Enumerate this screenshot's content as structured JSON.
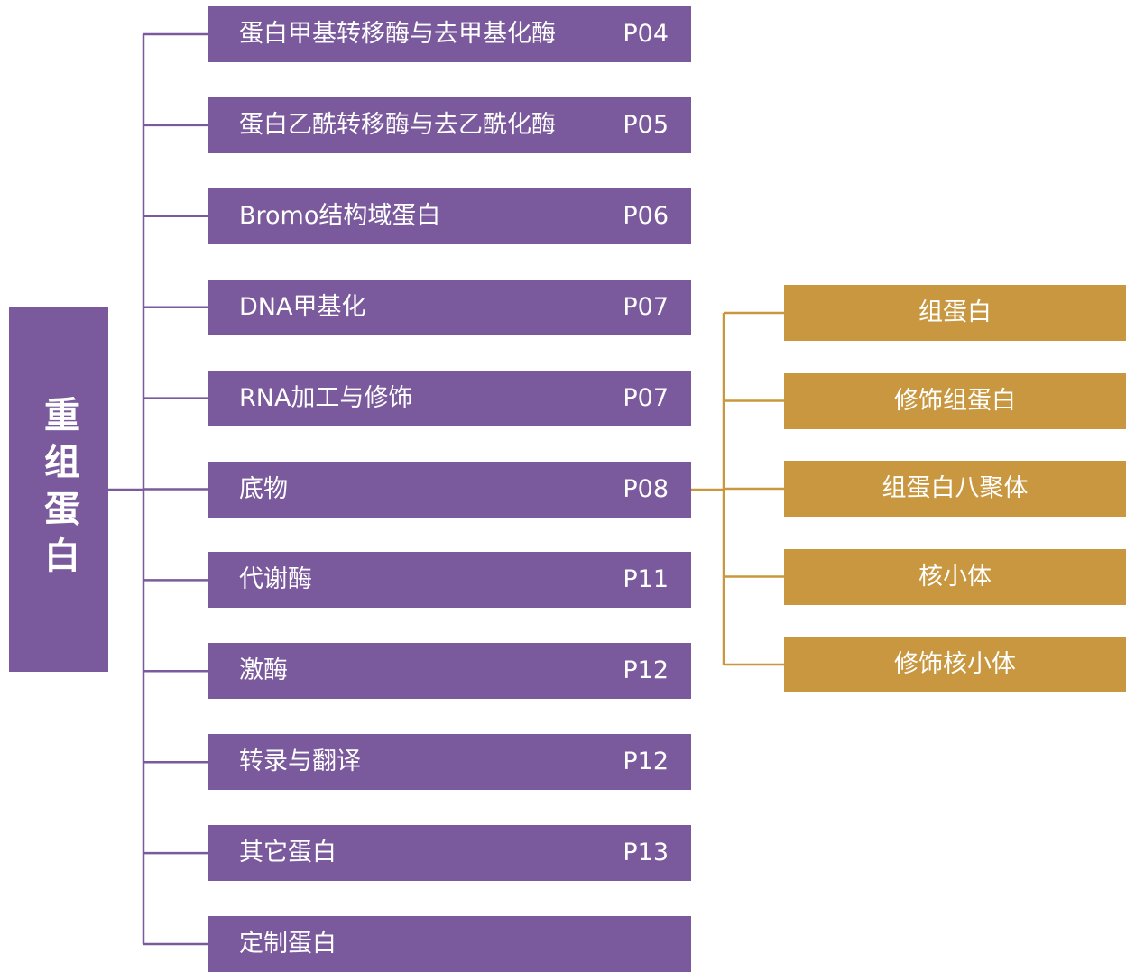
{
  "root": "重组蛋白",
  "items": [
    {
      "label": "蛋白甲基转移酶与去甲基化酶",
      "page": "P04"
    },
    {
      "label": "蛋白乙酰转移酶与去乙酰化酶",
      "page": "P05"
    },
    {
      "label": "Bromo结构域蛋白",
      "page": "P06"
    },
    {
      "label": "DNA甲基化",
      "page": "P07"
    },
    {
      "label": "RNA加工与修饰",
      "page": "P07"
    },
    {
      "label": "底物",
      "page": "P08"
    },
    {
      "label": "代谢酶",
      "page": "P11"
    },
    {
      "label": "激酶",
      "page": "P12"
    },
    {
      "label": "转录与翻译",
      "page": "P12"
    },
    {
      "label": "其它蛋白",
      "page": "P13"
    },
    {
      "label": "定制蛋白"
    }
  ],
  "subitems": [
    "组蛋白",
    "修饰组蛋白",
    "组蛋白八聚体",
    "核小体",
    "修饰核小体"
  ]
}
